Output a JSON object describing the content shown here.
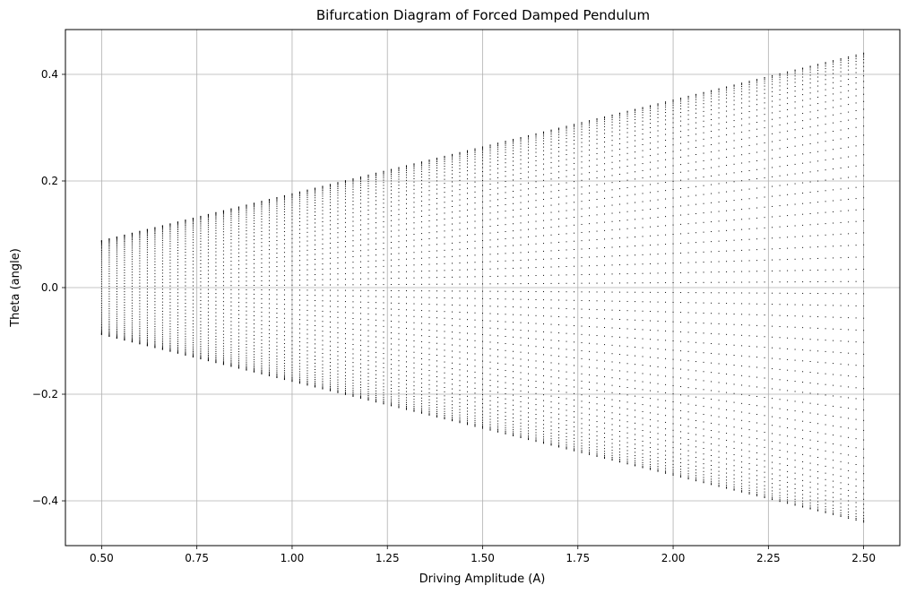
{
  "chart_data": {
    "type": "scatter",
    "title": "Bifurcation Diagram of Forced Damped Pendulum",
    "xlabel": "Driving Amplitude (A)",
    "ylabel": "Theta (angle)",
    "xlim": [
      0.405,
      2.595
    ],
    "ylim": [
      -0.484,
      0.484
    ],
    "xticks": [
      0.5,
      0.75,
      1.0,
      1.25,
      1.5,
      1.75,
      2.0,
      2.25,
      2.5
    ],
    "xtick_labels": [
      "0.50",
      "0.75",
      "1.00",
      "1.25",
      "1.50",
      "1.75",
      "2.00",
      "2.25",
      "2.50"
    ],
    "yticks": [
      -0.4,
      -0.2,
      0.0,
      0.2,
      0.4
    ],
    "ytick_labels": [
      "−0.4",
      "−0.2",
      "0.0",
      "0.2",
      "0.4"
    ],
    "grid": true,
    "marker_color": "#000000",
    "series": [
      {
        "x_start": 0.5,
        "x_end": 2.5,
        "x_step": 0.02,
        "theta_amplitude_at_x_start": 0.088,
        "theta_amplitude_at_x_end": 0.44,
        "samples_per_x": 60
      }
    ]
  }
}
